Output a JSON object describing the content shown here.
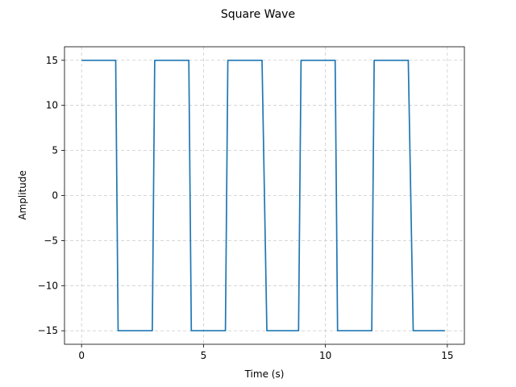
{
  "chart_data": {
    "type": "line",
    "title": "Square Wave",
    "xlabel": "Time (s)",
    "ylabel": "Amplitude",
    "xlim": [
      -0.7,
      15.7
    ],
    "ylim": [
      -16.5,
      16.5
    ],
    "xticks": [
      0,
      5,
      10,
      15
    ],
    "yticks": [
      -15,
      -10,
      -5,
      0,
      5,
      10,
      15
    ],
    "grid": true,
    "series_color": "#1f77b4",
    "series": [
      {
        "x": [
          0,
          1.4,
          1.5,
          2.9,
          3.0,
          4.4,
          4.5,
          5.9,
          6.0,
          7.4,
          7.6,
          8.9,
          9.0,
          10.4,
          10.5,
          11.9,
          12.0,
          13.4,
          13.6,
          14.9
        ],
        "y": [
          15,
          15,
          -15,
          -15,
          15,
          15,
          -15,
          -15,
          15,
          15,
          -15,
          -15,
          15,
          15,
          -15,
          -15,
          15,
          15,
          -15,
          -15
        ]
      }
    ]
  }
}
